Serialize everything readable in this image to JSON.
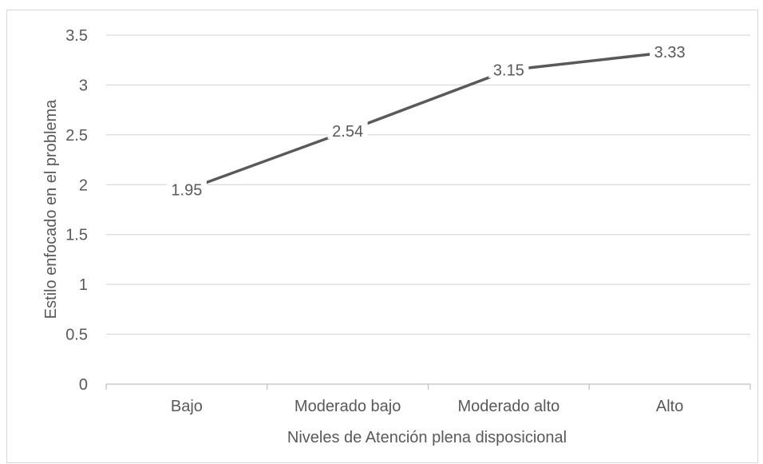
{
  "chart_data": {
    "type": "line",
    "categories": [
      "Bajo",
      "Moderado bajo",
      "Moderado alto",
      "Alto"
    ],
    "series": [
      {
        "values": [
          1.95,
          2.54,
          3.15,
          3.33
        ],
        "data_labels": [
          "1.95",
          "2.54",
          "3.15",
          "3.33"
        ]
      }
    ],
    "title": "",
    "xlabel": "Niveles de Atención plena disposicional",
    "ylabel": "Estilo enfocado en el problema",
    "ylim": [
      0,
      3.5
    ],
    "yticks": [
      "0",
      "0.5",
      "1",
      "1.5",
      "2",
      "2.5",
      "3",
      "3.5"
    ],
    "grid": true,
    "legend": "none",
    "colors": {
      "line": "#595959",
      "grid": "#d9d9d9",
      "text": "#595959",
      "axis": "#bfbfbf"
    }
  }
}
